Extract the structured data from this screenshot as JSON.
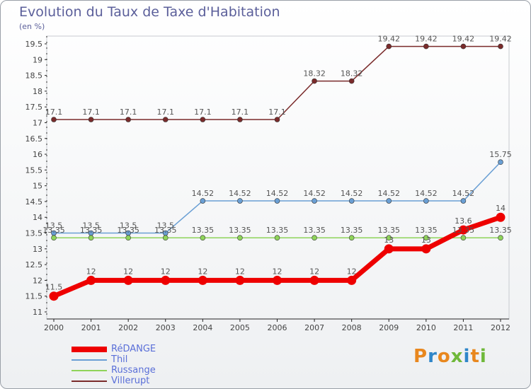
{
  "chart_data": {
    "type": "line",
    "title": "Evolution du Taux de Taxe d'Habitation",
    "unit_label": "(en %)",
    "categories": [
      "2000",
      "2001",
      "2002",
      "2003",
      "2004",
      "2005",
      "2006",
      "2007",
      "2008",
      "2009",
      "2010",
      "2011",
      "2012"
    ],
    "ylim": [
      11,
      19.5
    ],
    "y_ticks": [
      "11",
      "11.5",
      "12",
      "12.5",
      "13",
      "13.5",
      "14",
      "14.5",
      "15",
      "15.5",
      "16",
      "16.5",
      "17",
      "17.5",
      "18",
      "18.5",
      "19",
      "19.5"
    ],
    "series": [
      {
        "name": "RéDANGE",
        "color": "#ee0000",
        "values": [
          11.5,
          12,
          12,
          12,
          12,
          12,
          12,
          12,
          12,
          13,
          13,
          13.6,
          14
        ]
      },
      {
        "name": "Thil",
        "color": "#6a9fd4",
        "values": [
          13.5,
          13.5,
          13.5,
          13.5,
          14.52,
          14.52,
          14.52,
          14.52,
          14.52,
          14.52,
          14.52,
          14.52,
          15.75
        ]
      },
      {
        "name": "Russange",
        "color": "#8fd45a",
        "values": [
          13.35,
          13.35,
          13.35,
          13.35,
          13.35,
          13.35,
          13.35,
          13.35,
          13.35,
          13.35,
          13.35,
          13.35,
          13.35
        ]
      },
      {
        "name": "Villerupt",
        "color": "#7a2b2b",
        "values": [
          17.1,
          17.1,
          17.1,
          17.1,
          17.1,
          17.1,
          17.1,
          18.32,
          18.32,
          19.42,
          19.42,
          19.42,
          19.42
        ]
      }
    ],
    "value_labels": {
      "RéDANGE": [
        "11.5",
        "12",
        "12",
        "12",
        "12",
        "12",
        "12",
        "12",
        "12",
        "13",
        "13",
        "13.6",
        "14"
      ],
      "Thil": [
        "13.5",
        "13.5",
        "13.5",
        "13.5",
        "14.52",
        "14.52",
        "14.52",
        "14.52",
        "14.52",
        "14.52",
        "14.52",
        "14.52",
        "15.75"
      ],
      "Russange": [
        "13.35",
        "13.35",
        "13.35",
        "13.35",
        "13.35",
        "13.35",
        "13.35",
        "13.35",
        "13.35",
        "13.35",
        "13.35",
        "13.35",
        "13.35"
      ],
      "Villerupt": [
        "17.1",
        "17.1",
        "17.1",
        "17.1",
        "17.1",
        "17.1",
        "17.1",
        "18.32",
        "18.32",
        "19.42",
        "19.42",
        "19.42",
        "19.42"
      ]
    }
  },
  "legend": [
    {
      "label": "RéDANGE"
    },
    {
      "label": "Thil"
    },
    {
      "label": "Russange"
    },
    {
      "label": "Villerupt"
    }
  ],
  "brand": {
    "logo_text": "Proxiti",
    "logo_colors": [
      "#e8871e",
      "#2f86c9",
      "#e8871e",
      "#6fb83a",
      "#2f86c9",
      "#e8871e",
      "#6fb83a"
    ]
  }
}
